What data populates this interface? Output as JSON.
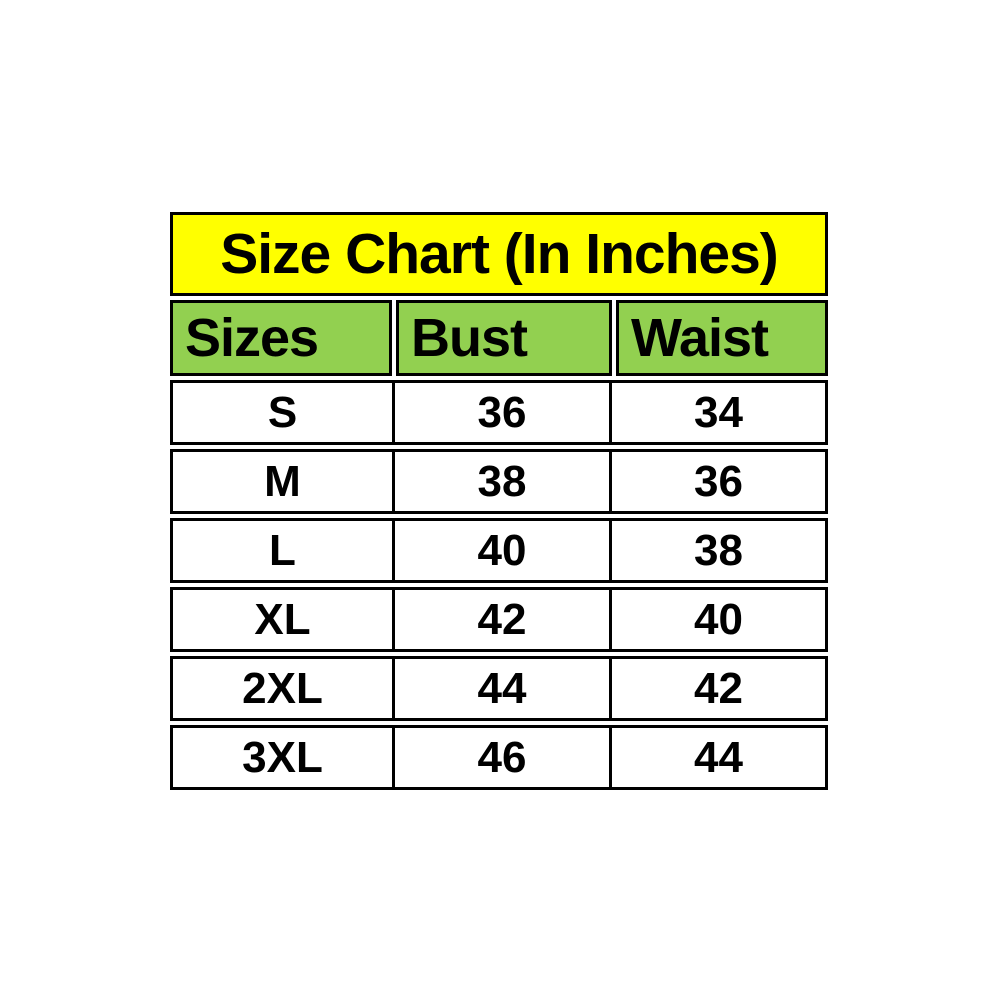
{
  "colors": {
    "title_bg": "#ffff00",
    "header_bg": "#92d050",
    "border": "#000000",
    "text": "#000000",
    "page_bg": "#ffffff"
  },
  "table": {
    "title": "Size Chart (In Inches)",
    "columns": [
      "Sizes",
      "Bust",
      "Waist"
    ],
    "rows": [
      {
        "size": "S",
        "bust": "36",
        "waist": "34"
      },
      {
        "size": "M",
        "bust": "38",
        "waist": "36"
      },
      {
        "size": "L",
        "bust": "40",
        "waist": "38"
      },
      {
        "size": "XL",
        "bust": "42",
        "waist": "40"
      },
      {
        "size": "2XL",
        "bust": "44",
        "waist": "42"
      },
      {
        "size": "3XL",
        "bust": "46",
        "waist": "44"
      }
    ]
  },
  "chart_data": {
    "type": "table",
    "title": "Size Chart (In Inches)",
    "columns": [
      "Sizes",
      "Bust",
      "Waist"
    ],
    "rows": [
      [
        "S",
        36,
        34
      ],
      [
        "M",
        38,
        36
      ],
      [
        "L",
        40,
        38
      ],
      [
        "XL",
        42,
        40
      ],
      [
        "2XL",
        44,
        42
      ],
      [
        "3XL",
        46,
        44
      ]
    ],
    "units": "inches"
  }
}
